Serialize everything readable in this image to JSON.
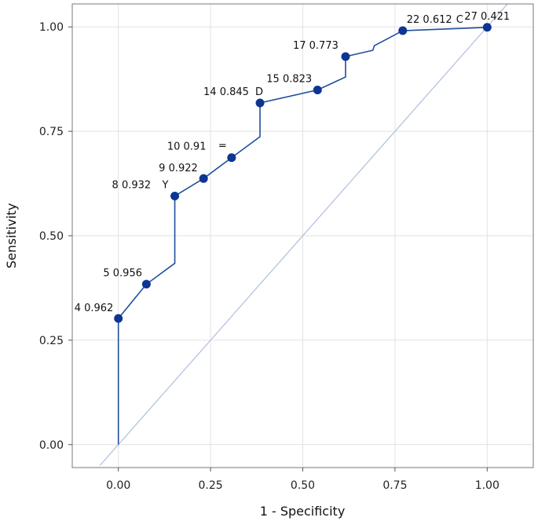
{
  "chart_data": {
    "type": "line",
    "title": "",
    "xlabel": "1 - Specificity",
    "ylabel": "Sensitivity",
    "xlim": [
      -0.125,
      1.125
    ],
    "ylim": [
      -0.055,
      1.055
    ],
    "x_ticks": [
      0,
      0.25,
      0.5,
      0.75,
      1
    ],
    "x_tick_labels": [
      "0.00",
      "0.25",
      "0.50",
      "0.75",
      "1.00"
    ],
    "y_ticks": [
      0,
      0.25,
      0.5,
      0.75,
      1
    ],
    "y_tick_labels": [
      "0.00",
      "0.25",
      "0.50",
      "0.75",
      "1.00"
    ],
    "grid": true,
    "colors": {
      "curve": "#1f4e9c",
      "point": "#0d3592",
      "diagonal": "#b4c3e0",
      "grid": "#e2e2e2"
    },
    "roc_curve": [
      [
        0,
        0
      ],
      [
        0,
        0.302
      ],
      [
        0.076,
        0.384
      ],
      [
        0.153,
        0.434
      ],
      [
        0.153,
        0.595
      ],
      [
        0.231,
        0.637
      ],
      [
        0.307,
        0.687
      ],
      [
        0.384,
        0.737
      ],
      [
        0.384,
        0.818
      ],
      [
        0.54,
        0.849
      ],
      [
        0.616,
        0.88
      ],
      [
        0.616,
        0.929
      ],
      [
        0.69,
        0.944
      ],
      [
        0.694,
        0.955
      ],
      [
        0.771,
        0.991
      ],
      [
        1,
        0.999
      ]
    ],
    "diagonal": [
      [
        -0.05,
        -0.05
      ],
      [
        1.055,
        1.055
      ]
    ],
    "points": [
      {
        "x": 0,
        "y": 0.302,
        "label": "4 0.962"
      },
      {
        "x": 0.076,
        "y": 0.384,
        "label": "5 0.956"
      },
      {
        "x": 0.153,
        "y": 0.595,
        "label": "8 0.932",
        "tag": "Y"
      },
      {
        "x": 0.231,
        "y": 0.637,
        "label": "9 0.922"
      },
      {
        "x": 0.307,
        "y": 0.687,
        "label": "10 0.91",
        "tag": "="
      },
      {
        "x": 0.384,
        "y": 0.818,
        "label": "14 0.845",
        "tag": "D"
      },
      {
        "x": 0.54,
        "y": 0.849,
        "label": "15 0.823"
      },
      {
        "x": 0.616,
        "y": 0.929,
        "label": "17 0.773"
      },
      {
        "x": 0.771,
        "y": 0.991,
        "label": "22 0.612",
        "tag": "C"
      },
      {
        "x": 1,
        "y": 0.999,
        "label": "27 0.421"
      }
    ]
  }
}
